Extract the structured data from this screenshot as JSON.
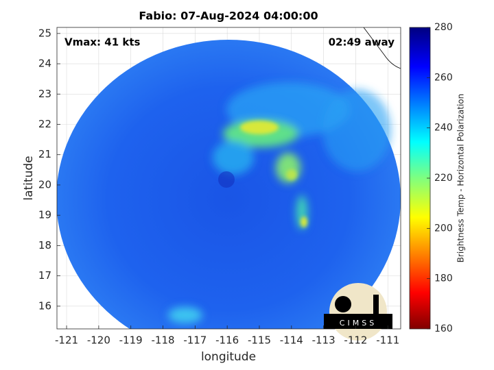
{
  "chart_data": {
    "type": "map",
    "title": "Fabio: 07-Aug-2024 04:00:00",
    "annotations": [
      "Vmax: 41 kts",
      "02:49 away"
    ],
    "xlabel": "longitude",
    "ylabel": "latitude",
    "xlim": [
      -121.3,
      -110.6
    ],
    "ylim": [
      15.25,
      25.2
    ],
    "xticks": [
      -121,
      -120,
      -119,
      -118,
      -117,
      -116,
      -115,
      -114,
      -113,
      -112,
      -111
    ],
    "yticks": [
      16,
      17,
      18,
      19,
      20,
      21,
      22,
      23,
      24,
      25
    ],
    "grid": true,
    "colorbar": {
      "label": "Brightness Temp - Horizontal Polarization",
      "lim": [
        160,
        280
      ],
      "ticks": [
        160,
        180,
        200,
        220,
        240,
        260,
        280
      ]
    },
    "logo": "CIMSS"
  }
}
